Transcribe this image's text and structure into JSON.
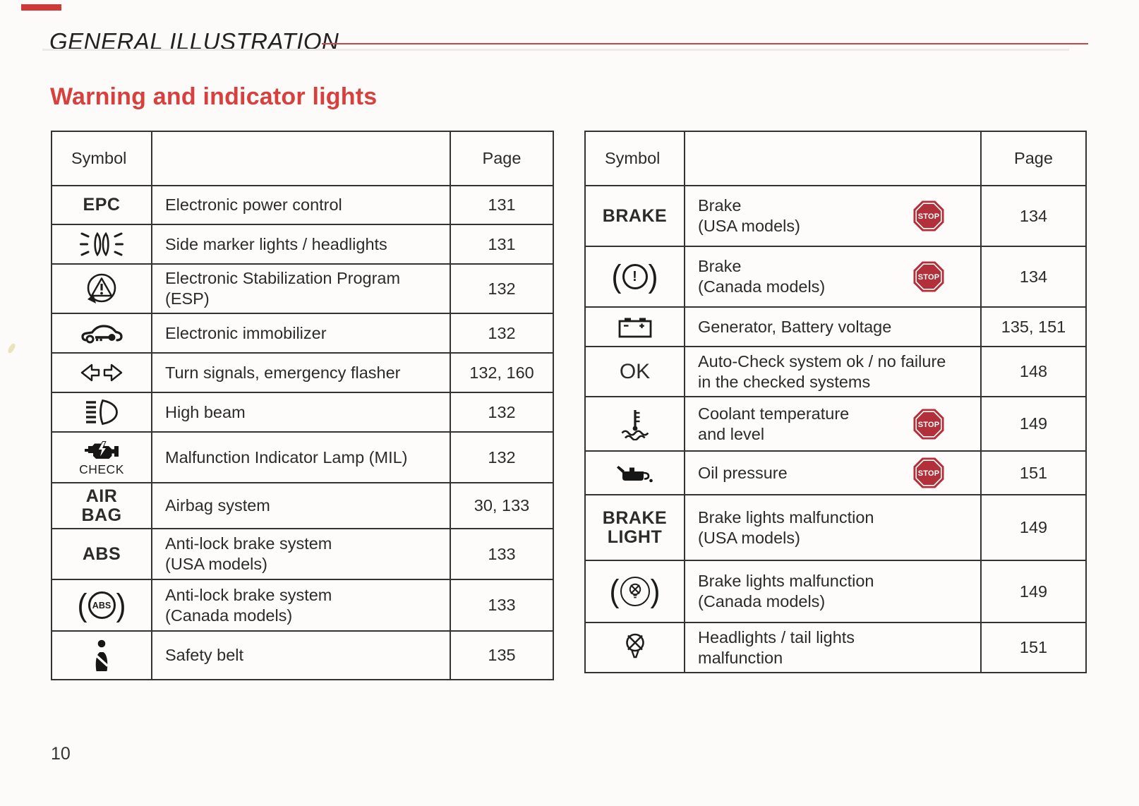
{
  "page": {
    "doc_title": "GENERAL ILLUSTRATION",
    "section_title": "Warning and indicator lights",
    "page_number": "10"
  },
  "colors": {
    "accent_red": "#d8403e",
    "rule_red": "#c4494d",
    "stop_red": "#b2303a",
    "text": "#2b2b2b",
    "background": "#fcfbf9",
    "table_border": "#333333"
  },
  "table_headers": {
    "symbol": "Symbol",
    "page": "Page"
  },
  "stop_badge_label": "STOP",
  "left_table": {
    "rows": [
      {
        "symbol_text": [
          "EPC"
        ],
        "desc_lines": [
          "Electronic power control"
        ],
        "page": "131"
      },
      {
        "icon": "side-marker-lights",
        "desc_lines": [
          "Side marker lights / headlights"
        ],
        "page": "131"
      },
      {
        "icon": "esp",
        "desc_lines": [
          "Electronic Stabilization Program",
          "(ESP)"
        ],
        "page": "132"
      },
      {
        "icon": "immobilizer",
        "desc_lines": [
          "Electronic immobilizer"
        ],
        "page": "132"
      },
      {
        "icon": "turn-signals",
        "desc_lines": [
          "Turn signals, emergency flasher"
        ],
        "page": "132, 160"
      },
      {
        "icon": "high-beam",
        "desc_lines": [
          "High beam"
        ],
        "page": "132"
      },
      {
        "icon": "check-engine",
        "icon_caption": "CHECK",
        "desc_lines": [
          "Malfunction Indicator Lamp (MIL)"
        ],
        "page": "132"
      },
      {
        "symbol_text": [
          "AIR",
          "BAG"
        ],
        "desc_lines": [
          "Airbag system"
        ],
        "page": "30, 133"
      },
      {
        "symbol_text": [
          "ABS"
        ],
        "desc_lines": [
          "Anti-lock brake system",
          "(USA models)"
        ],
        "page": "133"
      },
      {
        "icon": "abs-canada",
        "circle_text": "ABS",
        "desc_lines": [
          "Anti-lock brake system",
          "(Canada models)"
        ],
        "page": "133"
      },
      {
        "icon": "safety-belt",
        "desc_lines": [
          "Safety belt"
        ],
        "page": "135"
      }
    ]
  },
  "right_table": {
    "rows": [
      {
        "symbol_text": [
          "BRAKE"
        ],
        "desc_lines": [
          "Brake",
          "(USA models)"
        ],
        "stop": true,
        "page": "134"
      },
      {
        "icon": "brake-canada",
        "circle_text": "!",
        "desc_lines": [
          "Brake",
          "(Canada models)"
        ],
        "stop": true,
        "page": "134"
      },
      {
        "icon": "battery",
        "desc_lines": [
          "Generator, Battery voltage"
        ],
        "page": "135, 151"
      },
      {
        "symbol_text": [
          "OK"
        ],
        "desc_lines": [
          "Auto-Check system ok / no failure",
          "in the checked systems"
        ],
        "page": "148"
      },
      {
        "icon": "coolant",
        "desc_lines": [
          "Coolant temperature",
          "and level"
        ],
        "stop": true,
        "page": "149"
      },
      {
        "icon": "oil-pressure",
        "desc_lines": [
          "Oil pressure"
        ],
        "stop": true,
        "page": "151"
      },
      {
        "symbol_text": [
          "BRAKE",
          "LIGHT"
        ],
        "desc_lines": [
          "Brake lights malfunction",
          "(USA models)"
        ],
        "page": "149"
      },
      {
        "icon": "brake-lights-canada",
        "desc_lines": [
          "Brake lights malfunction",
          "(Canada models)"
        ],
        "page": "149"
      },
      {
        "icon": "bulb-x",
        "desc_lines": [
          "Headlights / tail lights",
          "malfunction"
        ],
        "page": "151"
      }
    ]
  }
}
